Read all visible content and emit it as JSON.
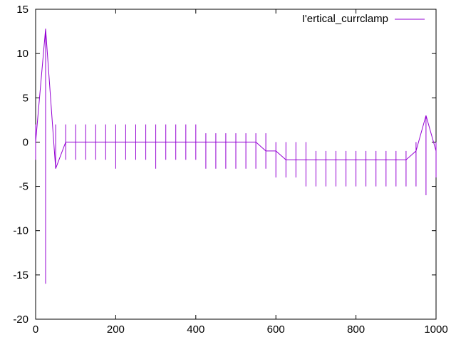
{
  "chart_data": {
    "type": "line",
    "title": "",
    "xlabel": "",
    "ylabel": "",
    "xlim": [
      0,
      1000
    ],
    "ylim": [
      -20,
      15
    ],
    "x_ticks": [
      0,
      200,
      400,
      600,
      800,
      1000
    ],
    "y_ticks": [
      -20,
      -15,
      -10,
      -5,
      0,
      5,
      10,
      15
    ],
    "grid": false,
    "legend_position": "top-right",
    "series": [
      {
        "name": "I'ertical_currclamp",
        "color": "#9400d3",
        "x": [
          0,
          25,
          50,
          75,
          100,
          125,
          150,
          175,
          200,
          225,
          250,
          275,
          300,
          325,
          350,
          375,
          400,
          425,
          450,
          475,
          500,
          525,
          550,
          575,
          600,
          625,
          650,
          675,
          700,
          725,
          750,
          775,
          800,
          825,
          850,
          875,
          900,
          925,
          950,
          975,
          1000
        ],
        "y": [
          0,
          12.8,
          -3,
          0,
          0,
          0,
          0,
          0,
          0,
          0,
          0,
          0,
          0,
          0,
          0,
          0,
          0,
          0,
          0,
          0,
          0,
          0,
          0,
          -1,
          -1,
          -2,
          -2,
          -2,
          -2,
          -2,
          -2,
          -2,
          -2,
          -2,
          -2,
          -2,
          -2,
          -2,
          -1,
          3,
          -1
        ],
        "y_max": [
          2,
          12.8,
          2,
          2,
          2,
          2,
          2,
          2,
          2,
          2,
          2,
          2,
          2,
          2,
          2,
          2,
          2,
          1,
          1,
          1,
          1,
          1,
          1,
          1,
          0,
          0,
          0,
          0,
          -1,
          -1,
          -1,
          -1,
          -1,
          -1,
          -1,
          -1,
          -1,
          -1,
          0,
          3,
          0
        ],
        "y_min": [
          -2,
          -16,
          -3,
          -2,
          -2,
          -2,
          -2,
          -2,
          -3,
          -2,
          -2,
          -2,
          -3,
          -2,
          -2,
          -2,
          -2,
          -3,
          -3,
          -3,
          -3,
          -3,
          -3,
          -3,
          -4,
          -4,
          -4,
          -5,
          -5,
          -5,
          -5,
          -5,
          -5,
          -5,
          -5,
          -5,
          -5,
          -5,
          -5,
          -6,
          -4
        ]
      }
    ]
  }
}
